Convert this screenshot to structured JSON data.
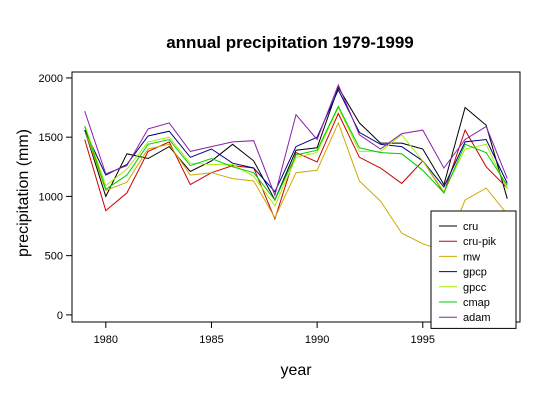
{
  "chart_data": {
    "type": "line",
    "title": "annual precipitation 1979-1999",
    "xlabel": "year",
    "ylabel": "precipitation (mm)",
    "xlim": [
      1978.4,
      1999.6
    ],
    "ylim": [
      -60,
      2050
    ],
    "x_ticks": [
      1980,
      1985,
      1990,
      1995
    ],
    "y_ticks": [
      0,
      500,
      1000,
      1500,
      2000
    ],
    "grid": false,
    "legend_position": "bottom-right",
    "x": [
      1979,
      1980,
      1981,
      1982,
      1983,
      1984,
      1985,
      1986,
      1987,
      1988,
      1989,
      1990,
      1991,
      1992,
      1993,
      1994,
      1995,
      1996,
      1997,
      1998,
      1999
    ],
    "series": [
      {
        "name": "cru",
        "color": "#000000",
        "values": [
          1560,
          1000,
          1360,
          1320,
          1420,
          1210,
          1300,
          1440,
          1300,
          970,
          1390,
          1410,
          1920,
          1620,
          1450,
          1450,
          1400,
          1100,
          1750,
          1600,
          980
        ]
      },
      {
        "name": "cru-pik",
        "color": "#cc0000",
        "values": [
          1480,
          880,
          1030,
          1380,
          1460,
          1100,
          1200,
          1260,
          1240,
          810,
          1370,
          1290,
          1700,
          1330,
          1240,
          1110,
          1300,
          1030,
          1560,
          1250,
          1070
        ]
      },
      {
        "name": "mw",
        "color": "#ccaa00",
        "values": [
          1560,
          1050,
          1120,
          1400,
          1440,
          1180,
          1200,
          1150,
          1130,
          820,
          1200,
          1220,
          1620,
          1130,
          960,
          690,
          600,
          540,
          970,
          1070,
          850
        ]
      },
      {
        "name": "gpcp",
        "color": "#000088",
        "values": [
          1560,
          1180,
          1270,
          1510,
          1550,
          1330,
          1400,
          1280,
          1240,
          1040,
          1420,
          1500,
          1900,
          1540,
          1440,
          1420,
          1300,
          1080,
          1460,
          1480,
          1110
        ]
      },
      {
        "name": "gpcc",
        "color": "#aaee00",
        "values": [
          1600,
          1090,
          1230,
          1460,
          1500,
          1280,
          1270,
          1270,
          1170,
          920,
          1330,
          1370,
          1750,
          1380,
          1380,
          1520,
          1300,
          1040,
          1400,
          1440,
          1060
        ]
      },
      {
        "name": "cmap",
        "color": "#00cc00",
        "values": [
          1590,
          1060,
          1180,
          1440,
          1480,
          1260,
          1320,
          1250,
          1200,
          970,
          1350,
          1390,
          1760,
          1410,
          1370,
          1360,
          1220,
          1030,
          1440,
          1370,
          1090
        ]
      },
      {
        "name": "adam",
        "color": "#8822aa",
        "values": [
          1720,
          1190,
          1260,
          1570,
          1620,
          1380,
          1420,
          1460,
          1470,
          1010,
          1690,
          1480,
          1940,
          1520,
          1400,
          1530,
          1560,
          1240,
          1480,
          1590,
          1150
        ]
      }
    ]
  }
}
